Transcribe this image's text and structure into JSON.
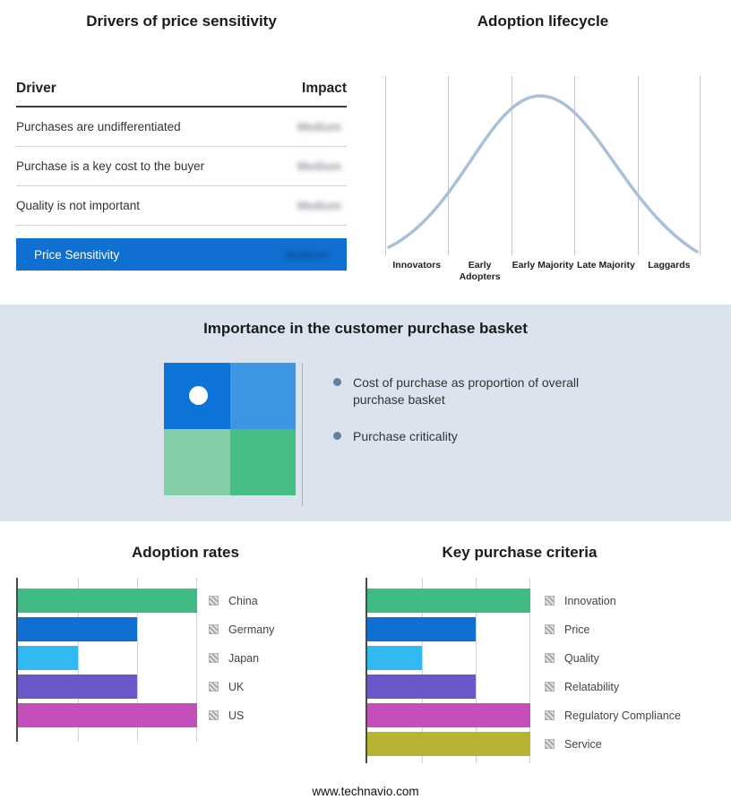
{
  "footer": "www.technavio.com",
  "drivers": {
    "title": "Drivers of price sensitivity",
    "columns": {
      "driver": "Driver",
      "impact": "Impact"
    },
    "rows": [
      {
        "label": "Purchases are undifferentiated",
        "impact": "Medium"
      },
      {
        "label": "Purchase is a key cost to the buyer",
        "impact": "Medium"
      },
      {
        "label": "Quality is not important",
        "impact": "Medium"
      }
    ],
    "highlight_row": {
      "label": "Price Sensitivity",
      "impact": "Medium"
    },
    "highlight_color": "#0f70d1"
  },
  "lifecycle": {
    "title": "Adoption lifecycle",
    "stages": [
      "Innovators",
      "Early Adopters",
      "Early Majority",
      "Late Majority",
      "Laggards"
    ],
    "curve_color": "#aabfd8"
  },
  "basket": {
    "title": "Importance in the customer purchase basket",
    "bullets": [
      "Cost of purchase as proportion of overall purchase basket",
      "Purchase criticality"
    ],
    "quadrant_colors": [
      "#0b74d6",
      "#3e95e1",
      "#85cfa8",
      "#45bd83"
    ],
    "marker": "white-dot-in-top-left-quadrant"
  },
  "chart_data": [
    {
      "id": "adoption",
      "type": "bar",
      "title": "Adoption rates",
      "orientation": "horizontal",
      "categories": [
        "China",
        "Germany",
        "Japan",
        "UK",
        "US"
      ],
      "values": [
        100,
        66.7,
        33.3,
        66.7,
        100
      ],
      "value_scale": "relative length, axis unlabeled with gridlines at thirds",
      "colors": [
        "#3fbc84",
        "#0f70d1",
        "#33b9f1",
        "#6a57c8",
        "#c44fb9"
      ],
      "grid": true,
      "legend_position": "right"
    },
    {
      "id": "criteria",
      "type": "bar",
      "title": "Key purchase criteria",
      "orientation": "horizontal",
      "categories": [
        "Innovation",
        "Price",
        "Quality",
        "Relatability",
        "Regulatory Compliance",
        "Service"
      ],
      "values": [
        100,
        66.7,
        33.3,
        66.7,
        100,
        100
      ],
      "value_scale": "relative length, axis unlabeled with gridlines at thirds",
      "colors": [
        "#3fbc84",
        "#0f70d1",
        "#33b9f1",
        "#6a57c8",
        "#c44fb9",
        "#b5b533"
      ],
      "grid": true,
      "legend_position": "right"
    }
  ]
}
